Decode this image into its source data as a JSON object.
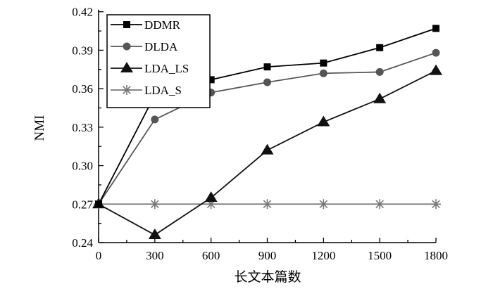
{
  "chart_data": {
    "type": "line",
    "title": "",
    "xlabel": "长文本篇数",
    "ylabel": "NMI",
    "x": [
      0,
      300,
      600,
      900,
      1200,
      1500,
      1800
    ],
    "xlim": [
      0,
      1800
    ],
    "ylim": [
      0.24,
      0.42
    ],
    "xticks": [
      "0",
      "300",
      "600",
      "900",
      "1200",
      "1500",
      "1800"
    ],
    "yticks": [
      "0.24",
      "0.27",
      "0.30",
      "0.33",
      "0.36",
      "0.39",
      "0.42"
    ],
    "grid": false,
    "legend_position": "top-left",
    "series": [
      {
        "name": "DDMR",
        "marker": "square",
        "color": "#000000",
        "values": [
          0.27,
          0.355,
          0.367,
          0.377,
          0.38,
          0.392,
          0.407
        ]
      },
      {
        "name": "DLDA",
        "marker": "circle",
        "color": "#555555",
        "values": [
          0.27,
          0.336,
          0.357,
          0.365,
          0.372,
          0.373,
          0.388
        ]
      },
      {
        "name": "LDA_LS",
        "marker": "triangle",
        "color": "#111111",
        "values": [
          0.27,
          0.246,
          0.275,
          0.312,
          0.334,
          0.352,
          0.374
        ]
      },
      {
        "name": "LDA_S",
        "marker": "star",
        "color": "#777777",
        "values": [
          0.27,
          0.27,
          0.27,
          0.27,
          0.27,
          0.27,
          0.27
        ]
      }
    ]
  }
}
